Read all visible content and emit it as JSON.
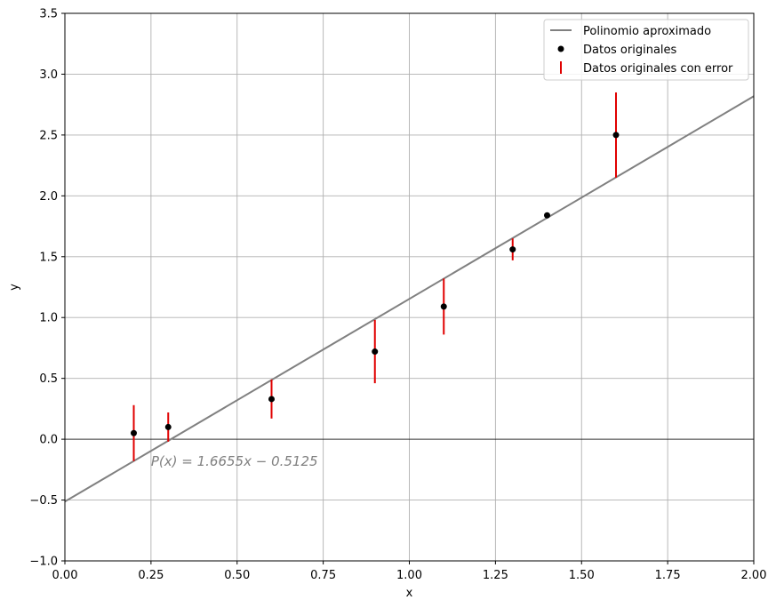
{
  "chart_data": {
    "type": "scatter",
    "xlabel": "x",
    "ylabel": "y",
    "xlim": [
      0.0,
      2.0
    ],
    "ylim": [
      -1.0,
      3.5
    ],
    "xticks": [
      "0.00",
      "0.25",
      "0.50",
      "0.75",
      "1.00",
      "1.25",
      "1.50",
      "1.75",
      "2.00"
    ],
    "xtick_values": [
      0,
      0.25,
      0.5,
      0.75,
      1.0,
      1.25,
      1.5,
      1.75,
      2.0
    ],
    "yticks": [
      "−1.0",
      "−0.5",
      "0.0",
      "0.5",
      "1.0",
      "1.5",
      "2.0",
      "2.5",
      "3.0",
      "3.5"
    ],
    "ytick_values": [
      -1.0,
      -0.5,
      0.0,
      0.5,
      1.0,
      1.5,
      2.0,
      2.5,
      3.0,
      3.5
    ],
    "grid": true,
    "zero_line": true,
    "legend_position": "top-right",
    "series": [
      {
        "name": "Polinomio aproximado",
        "kind": "line",
        "color": "#808080",
        "slope": 1.6655,
        "intercept": -0.5125
      },
      {
        "name": "Datos originales",
        "kind": "scatter",
        "color": "#000000",
        "x": [
          0.2,
          0.3,
          0.6,
          0.9,
          1.1,
          1.3,
          1.4,
          1.6
        ],
        "y": [
          0.05,
          0.1,
          0.33,
          0.72,
          1.09,
          1.56,
          1.84,
          2.5
        ]
      },
      {
        "name": "Datos originales con error",
        "kind": "errorbar",
        "color": "#e00000",
        "x": [
          0.2,
          0.3,
          0.6,
          0.9,
          1.1,
          1.3,
          1.4,
          1.6
        ],
        "y": [
          0.05,
          0.1,
          0.33,
          0.72,
          1.09,
          1.56,
          1.84,
          2.5
        ],
        "err": [
          0.23,
          0.12,
          0.16,
          0.26,
          0.23,
          0.09,
          0.02,
          0.35
        ]
      }
    ],
    "annotation": {
      "text": "P(x) = 1.6655x − 0.5125",
      "x": 0.25,
      "y": -0.18
    }
  }
}
